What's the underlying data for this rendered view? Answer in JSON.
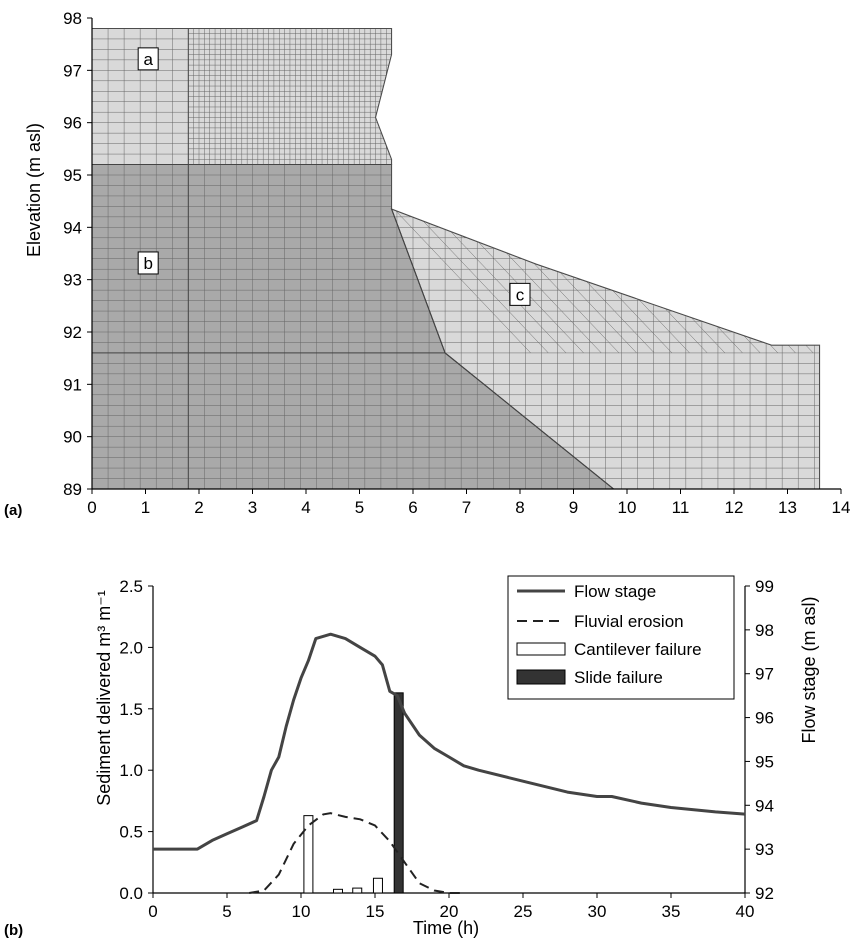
{
  "chart_data": [
    {
      "panel_label": "(a)",
      "type": "diagram",
      "ylabel": "Elevation (m asl)",
      "xlim": [
        0,
        14
      ],
      "ylim": [
        89,
        98
      ],
      "x_ticks": [
        "0",
        "1",
        "2",
        "3",
        "4",
        "5",
        "6",
        "7",
        "8",
        "9",
        "10",
        "11",
        "12",
        "13",
        "14"
      ],
      "y_ticks": [
        "89",
        "90",
        "91",
        "92",
        "93",
        "94",
        "95",
        "96",
        "97",
        "98"
      ],
      "zones": [
        {
          "label": "a",
          "color": "#d9d9d9"
        },
        {
          "label": "b",
          "color": "#a9a9a9"
        },
        {
          "label": "c",
          "color": "#d9d9d9"
        }
      ],
      "zone_outlines": {
        "a": [
          [
            0,
            97.8
          ],
          [
            5.6,
            97.8
          ],
          [
            5.6,
            97.3
          ],
          [
            5.3,
            96.1
          ],
          [
            5.6,
            95.3
          ],
          [
            5.6,
            95.2
          ],
          [
            0,
            95.2
          ]
        ],
        "b": [
          [
            0,
            95.2
          ],
          [
            5.6,
            95.2
          ],
          [
            5.6,
            94.35
          ],
          [
            6.6,
            91.6
          ],
          [
            9.75,
            89
          ],
          [
            0,
            89
          ]
        ],
        "c": [
          [
            5.6,
            94.35
          ],
          [
            8.3,
            93.3
          ],
          [
            12.7,
            91.75
          ],
          [
            13.6,
            91.75
          ],
          [
            13.6,
            89
          ],
          [
            9.75,
            89
          ],
          [
            6.6,
            91.6
          ]
        ]
      }
    },
    {
      "panel_label": "(b)",
      "type": "line",
      "xlabel": "Time (h)",
      "ylabel": "Sediment delivered m³ m⁻¹",
      "ylabel_right": "Flow stage (m asl)",
      "xlim": [
        0,
        40
      ],
      "ylim": [
        0,
        2.5
      ],
      "ylim_right": [
        92,
        99
      ],
      "x_ticks": [
        "0",
        "5",
        "10",
        "15",
        "20",
        "25",
        "30",
        "35",
        "40"
      ],
      "y_ticks": [
        "0.0",
        "0.5",
        "1.0",
        "1.5",
        "2.0",
        "2.5"
      ],
      "y_ticks_right": [
        "92",
        "93",
        "94",
        "95",
        "96",
        "97",
        "98",
        "99"
      ],
      "legend_position": "top-right",
      "series": [
        {
          "name": "Flow stage",
          "style": "solid",
          "axis": "right",
          "x": [
            0,
            3,
            4,
            5,
            6,
            7,
            7.5,
            8,
            8.5,
            9,
            9.5,
            10,
            10.5,
            11,
            12,
            13,
            14,
            15,
            15.5,
            16,
            16.5,
            17,
            18,
            19,
            20,
            21,
            22,
            25,
            28,
            30,
            31,
            33,
            35,
            38,
            40
          ],
          "y": [
            93.0,
            93.0,
            93.2,
            93.35,
            93.5,
            93.65,
            94.2,
            94.8,
            95.1,
            95.8,
            96.4,
            96.9,
            97.3,
            97.8,
            97.9,
            97.8,
            97.6,
            97.4,
            97.2,
            96.6,
            96.5,
            96.1,
            95.6,
            95.3,
            95.1,
            94.9,
            94.8,
            94.55,
            94.3,
            94.2,
            94.2,
            94.05,
            93.95,
            93.85,
            93.8
          ]
        },
        {
          "name": "Fluvial erosion",
          "style": "dashed",
          "axis": "left",
          "x": [
            6.5,
            7.5,
            8.5,
            9.5,
            10.5,
            11.5,
            12,
            13,
            14,
            15,
            16,
            17,
            18,
            19,
            20,
            21
          ],
          "y": [
            0.0,
            0.02,
            0.15,
            0.4,
            0.55,
            0.64,
            0.65,
            0.62,
            0.6,
            0.55,
            0.42,
            0.25,
            0.08,
            0.02,
            0.0,
            0.0
          ]
        },
        {
          "name": "Cantilever failure",
          "style": "open-bar",
          "axis": "left",
          "x": [
            10.5,
            12.5,
            13.8,
            15.2
          ],
          "y": [
            0.63,
            0.03,
            0.04,
            0.12
          ]
        },
        {
          "name": "Slide failure",
          "style": "filled-bar",
          "axis": "left",
          "x": [
            16.6
          ],
          "y": [
            1.63
          ]
        }
      ]
    }
  ]
}
